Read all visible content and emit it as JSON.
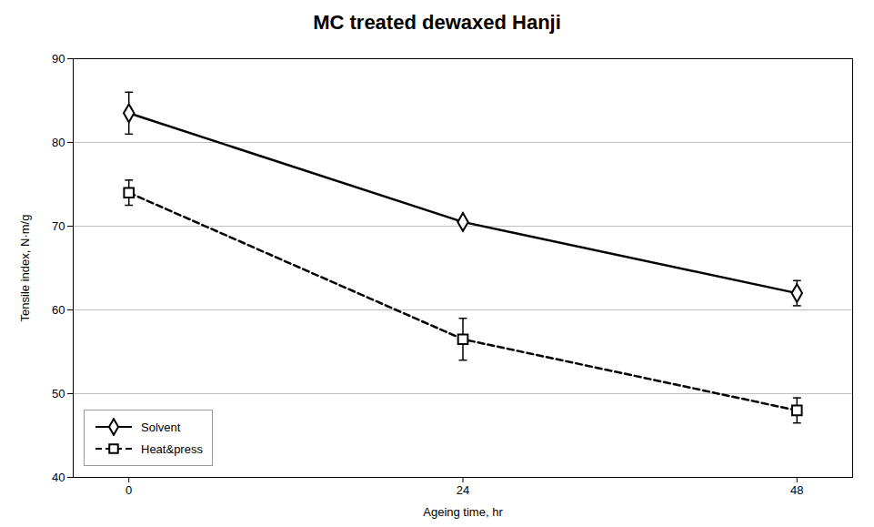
{
  "chart_data": {
    "type": "line",
    "title": "MC treated dewaxed Hanji",
    "xlabel": "Ageing time, hr",
    "ylabel": "Tensile index, N·m/g",
    "x": [
      0,
      24,
      48
    ],
    "series": [
      {
        "name": "Solvent",
        "color": "#000000",
        "values": [
          83.5,
          70.5,
          62.0
        ],
        "yerr": [
          2.5,
          0.0,
          1.5
        ],
        "marker": "diamond",
        "line_style": "solid"
      },
      {
        "name": "Heat&press",
        "color": "#000000",
        "values": [
          74.0,
          56.5,
          48.0
        ],
        "yerr": [
          1.5,
          2.5,
          1.5
        ],
        "marker": "square",
        "line_style": "dashed"
      }
    ],
    "xlim": [
      -4,
      52
    ],
    "xticks": [
      0,
      24,
      48
    ],
    "ylim": [
      40,
      90
    ],
    "yticks": [
      40,
      50,
      60,
      70,
      80,
      90
    ],
    "grid": true,
    "legend": "lower left"
  }
}
